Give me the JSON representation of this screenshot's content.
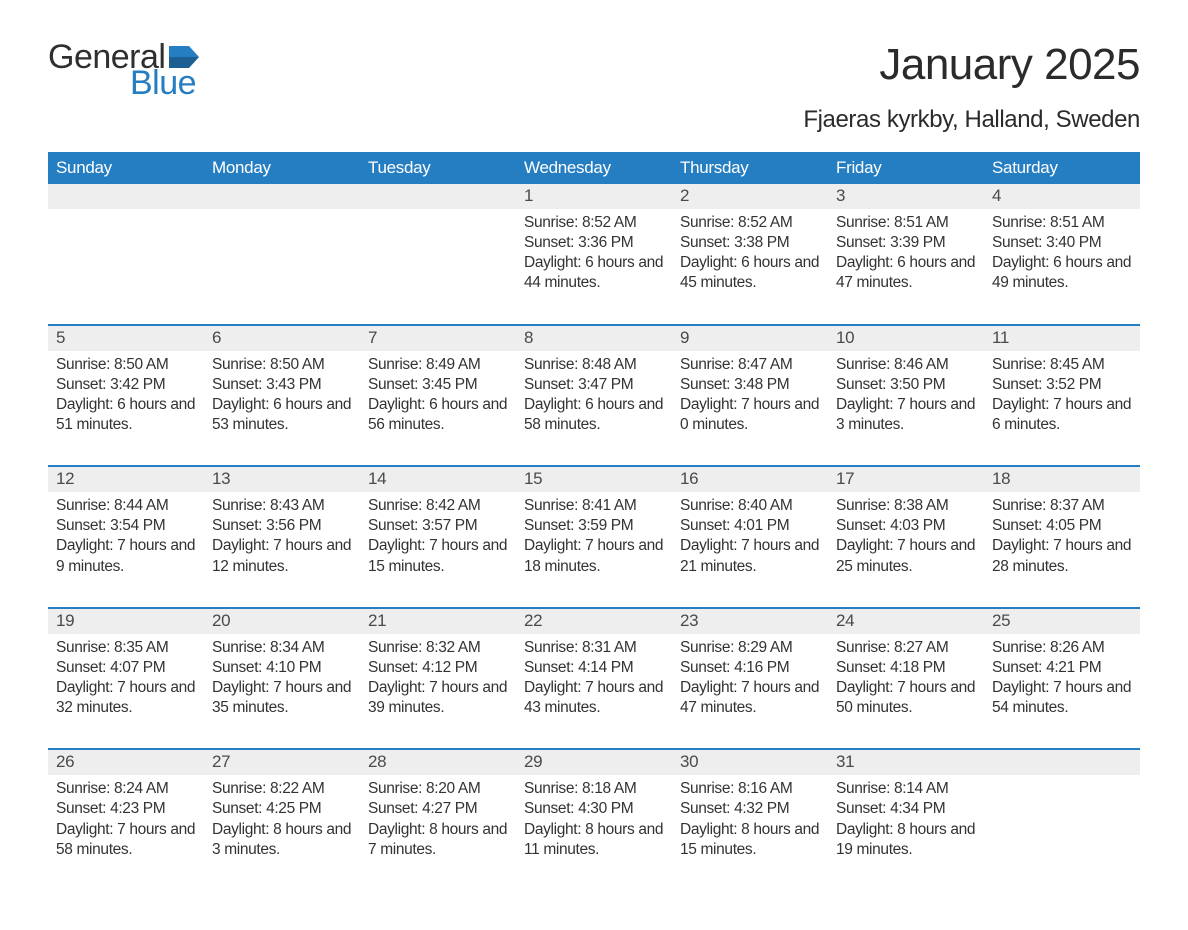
{
  "logo": {
    "word1": "General",
    "word2": "Blue",
    "text_color": "#2f2f2f",
    "accent_color": "#267ec2"
  },
  "title": "January 2025",
  "subtitle": "Fjaeras kyrkby, Halland, Sweden",
  "colors": {
    "header_bg": "#267ec2",
    "header_text": "#ffffff",
    "daynum_bg": "#eeeeee",
    "daynum_text": "#4a4a4a",
    "body_text": "#333333",
    "row_border": "#267ec2",
    "page_bg": "#ffffff"
  },
  "fonts": {
    "title_size_pt": 33,
    "subtitle_size_pt": 18,
    "header_size_pt": 13,
    "daynum_size_pt": 13,
    "body_size_pt": 12
  },
  "day_labels": [
    "Sunday",
    "Monday",
    "Tuesday",
    "Wednesday",
    "Thursday",
    "Friday",
    "Saturday"
  ],
  "weeks": [
    [
      {
        "n": "",
        "sunrise": "",
        "sunset": "",
        "daylight": ""
      },
      {
        "n": "",
        "sunrise": "",
        "sunset": "",
        "daylight": ""
      },
      {
        "n": "",
        "sunrise": "",
        "sunset": "",
        "daylight": ""
      },
      {
        "n": "1",
        "sunrise": "Sunrise: 8:52 AM",
        "sunset": "Sunset: 3:36 PM",
        "daylight": "Daylight: 6 hours and 44 minutes."
      },
      {
        "n": "2",
        "sunrise": "Sunrise: 8:52 AM",
        "sunset": "Sunset: 3:38 PM",
        "daylight": "Daylight: 6 hours and 45 minutes."
      },
      {
        "n": "3",
        "sunrise": "Sunrise: 8:51 AM",
        "sunset": "Sunset: 3:39 PM",
        "daylight": "Daylight: 6 hours and 47 minutes."
      },
      {
        "n": "4",
        "sunrise": "Sunrise: 8:51 AM",
        "sunset": "Sunset: 3:40 PM",
        "daylight": "Daylight: 6 hours and 49 minutes."
      }
    ],
    [
      {
        "n": "5",
        "sunrise": "Sunrise: 8:50 AM",
        "sunset": "Sunset: 3:42 PM",
        "daylight": "Daylight: 6 hours and 51 minutes."
      },
      {
        "n": "6",
        "sunrise": "Sunrise: 8:50 AM",
        "sunset": "Sunset: 3:43 PM",
        "daylight": "Daylight: 6 hours and 53 minutes."
      },
      {
        "n": "7",
        "sunrise": "Sunrise: 8:49 AM",
        "sunset": "Sunset: 3:45 PM",
        "daylight": "Daylight: 6 hours and 56 minutes."
      },
      {
        "n": "8",
        "sunrise": "Sunrise: 8:48 AM",
        "sunset": "Sunset: 3:47 PM",
        "daylight": "Daylight: 6 hours and 58 minutes."
      },
      {
        "n": "9",
        "sunrise": "Sunrise: 8:47 AM",
        "sunset": "Sunset: 3:48 PM",
        "daylight": "Daylight: 7 hours and 0 minutes."
      },
      {
        "n": "10",
        "sunrise": "Sunrise: 8:46 AM",
        "sunset": "Sunset: 3:50 PM",
        "daylight": "Daylight: 7 hours and 3 minutes."
      },
      {
        "n": "11",
        "sunrise": "Sunrise: 8:45 AM",
        "sunset": "Sunset: 3:52 PM",
        "daylight": "Daylight: 7 hours and 6 minutes."
      }
    ],
    [
      {
        "n": "12",
        "sunrise": "Sunrise: 8:44 AM",
        "sunset": "Sunset: 3:54 PM",
        "daylight": "Daylight: 7 hours and 9 minutes."
      },
      {
        "n": "13",
        "sunrise": "Sunrise: 8:43 AM",
        "sunset": "Sunset: 3:56 PM",
        "daylight": "Daylight: 7 hours and 12 minutes."
      },
      {
        "n": "14",
        "sunrise": "Sunrise: 8:42 AM",
        "sunset": "Sunset: 3:57 PM",
        "daylight": "Daylight: 7 hours and 15 minutes."
      },
      {
        "n": "15",
        "sunrise": "Sunrise: 8:41 AM",
        "sunset": "Sunset: 3:59 PM",
        "daylight": "Daylight: 7 hours and 18 minutes."
      },
      {
        "n": "16",
        "sunrise": "Sunrise: 8:40 AM",
        "sunset": "Sunset: 4:01 PM",
        "daylight": "Daylight: 7 hours and 21 minutes."
      },
      {
        "n": "17",
        "sunrise": "Sunrise: 8:38 AM",
        "sunset": "Sunset: 4:03 PM",
        "daylight": "Daylight: 7 hours and 25 minutes."
      },
      {
        "n": "18",
        "sunrise": "Sunrise: 8:37 AM",
        "sunset": "Sunset: 4:05 PM",
        "daylight": "Daylight: 7 hours and 28 minutes."
      }
    ],
    [
      {
        "n": "19",
        "sunrise": "Sunrise: 8:35 AM",
        "sunset": "Sunset: 4:07 PM",
        "daylight": "Daylight: 7 hours and 32 minutes."
      },
      {
        "n": "20",
        "sunrise": "Sunrise: 8:34 AM",
        "sunset": "Sunset: 4:10 PM",
        "daylight": "Daylight: 7 hours and 35 minutes."
      },
      {
        "n": "21",
        "sunrise": "Sunrise: 8:32 AM",
        "sunset": "Sunset: 4:12 PM",
        "daylight": "Daylight: 7 hours and 39 minutes."
      },
      {
        "n": "22",
        "sunrise": "Sunrise: 8:31 AM",
        "sunset": "Sunset: 4:14 PM",
        "daylight": "Daylight: 7 hours and 43 minutes."
      },
      {
        "n": "23",
        "sunrise": "Sunrise: 8:29 AM",
        "sunset": "Sunset: 4:16 PM",
        "daylight": "Daylight: 7 hours and 47 minutes."
      },
      {
        "n": "24",
        "sunrise": "Sunrise: 8:27 AM",
        "sunset": "Sunset: 4:18 PM",
        "daylight": "Daylight: 7 hours and 50 minutes."
      },
      {
        "n": "25",
        "sunrise": "Sunrise: 8:26 AM",
        "sunset": "Sunset: 4:21 PM",
        "daylight": "Daylight: 7 hours and 54 minutes."
      }
    ],
    [
      {
        "n": "26",
        "sunrise": "Sunrise: 8:24 AM",
        "sunset": "Sunset: 4:23 PM",
        "daylight": "Daylight: 7 hours and 58 minutes."
      },
      {
        "n": "27",
        "sunrise": "Sunrise: 8:22 AM",
        "sunset": "Sunset: 4:25 PM",
        "daylight": "Daylight: 8 hours and 3 minutes."
      },
      {
        "n": "28",
        "sunrise": "Sunrise: 8:20 AM",
        "sunset": "Sunset: 4:27 PM",
        "daylight": "Daylight: 8 hours and 7 minutes."
      },
      {
        "n": "29",
        "sunrise": "Sunrise: 8:18 AM",
        "sunset": "Sunset: 4:30 PM",
        "daylight": "Daylight: 8 hours and 11 minutes."
      },
      {
        "n": "30",
        "sunrise": "Sunrise: 8:16 AM",
        "sunset": "Sunset: 4:32 PM",
        "daylight": "Daylight: 8 hours and 15 minutes."
      },
      {
        "n": "31",
        "sunrise": "Sunrise: 8:14 AM",
        "sunset": "Sunset: 4:34 PM",
        "daylight": "Daylight: 8 hours and 19 minutes."
      },
      {
        "n": "",
        "sunrise": "",
        "sunset": "",
        "daylight": ""
      }
    ]
  ]
}
